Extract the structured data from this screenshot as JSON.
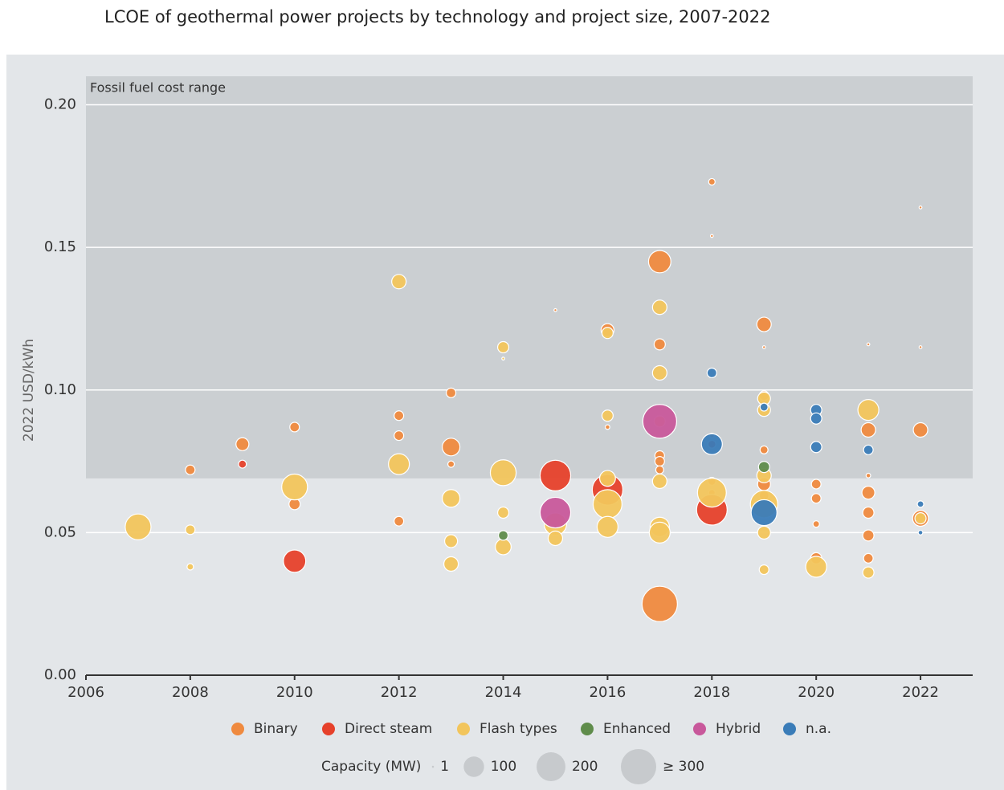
{
  "chart_data": {
    "type": "bubble",
    "title": "LCOE of geothermal power projects by technology and project size, 2007-2022",
    "y_label": "2022 USD/kWh",
    "band": {
      "label": "Fossil fuel cost range",
      "range": [
        0.069,
        0.21
      ]
    },
    "xlim": [
      2006,
      2023
    ],
    "xticks": [
      2006,
      2008,
      2010,
      2012,
      2014,
      2016,
      2018,
      2020,
      2022
    ],
    "ylim": [
      0,
      0.21
    ],
    "yticks": [
      {
        "value": 0,
        "label": "0.00"
      },
      0.05,
      {
        "value": 0.1,
        "label": "0.10"
      },
      0.15,
      {
        "value": 0.2,
        "label": "0.20"
      }
    ],
    "grid": true,
    "size_legend": {
      "title": "Capacity (MW)",
      "sizes": [
        1,
        100,
        200,
        {
          "value": 300,
          "label": "≥ 300"
        }
      ]
    },
    "series": [
      {
        "name": "Binary",
        "color": "#ef8a3f",
        "x": [
          2008,
          2009,
          2010,
          2010,
          2012,
          2012,
          2012,
          2013,
          2013,
          2013,
          2015,
          2016,
          2016,
          2017,
          2017,
          2017,
          2017,
          2017,
          2017,
          2018,
          2018,
          2018,
          2018,
          2018,
          2019,
          2019,
          2019,
          2019,
          2019,
          2019,
          2020,
          2020,
          2020,
          2020,
          2021,
          2021,
          2021,
          2021,
          2021,
          2021,
          2021,
          2022,
          2022,
          2022,
          2022
        ],
        "values": [
          0.072,
          0.081,
          0.06,
          0.087,
          0.091,
          0.084,
          0.054,
          0.099,
          0.08,
          0.074,
          0.128,
          0.121,
          0.087,
          0.145,
          0.116,
          0.077,
          0.075,
          0.072,
          0.025,
          0.173,
          0.154,
          0.084,
          0.068,
          0.064,
          0.123,
          0.115,
          0.098,
          0.079,
          0.067,
          0.063,
          0.067,
          0.062,
          0.053,
          0.041,
          0.116,
          0.086,
          0.07,
          0.064,
          0.057,
          0.049,
          0.041,
          0.164,
          0.115,
          0.086,
          0.055
        ],
        "sizes": [
          22,
          40,
          30,
          22,
          22,
          22,
          22,
          22,
          75,
          10,
          2,
          40,
          5,
          120,
          30,
          22,
          22,
          15,
          300,
          10,
          2,
          5,
          15,
          10,
          50,
          2,
          22,
          15,
          40,
          22,
          22,
          22,
          10,
          30,
          2,
          50,
          5,
          40,
          30,
          30,
          22,
          2,
          2,
          50,
          60
        ]
      },
      {
        "name": "Direct steam",
        "color": "#e6412b",
        "x": [
          2009,
          2010,
          2015,
          2016,
          2018,
          2018
        ],
        "values": [
          0.074,
          0.04,
          0.07,
          0.065,
          0.058,
          0.081
        ],
        "sizes": [
          15,
          120,
          225,
          225,
          225,
          15
        ]
      },
      {
        "name": "Flash types",
        "color": "#f2c55c",
        "x": [
          2007,
          2008,
          2008,
          2010,
          2012,
          2012,
          2013,
          2013,
          2013,
          2014,
          2014,
          2014,
          2014,
          2014,
          2015,
          2015,
          2016,
          2016,
          2016,
          2016,
          2016,
          2017,
          2017,
          2017,
          2017,
          2017,
          2017,
          2018,
          2019,
          2019,
          2019,
          2019,
          2019,
          2019,
          2020,
          2021,
          2021,
          2022
        ],
        "values": [
          0.052,
          0.051,
          0.038,
          0.066,
          0.138,
          0.074,
          0.062,
          0.047,
          0.039,
          0.115,
          0.111,
          0.071,
          0.057,
          0.045,
          0.053,
          0.048,
          0.12,
          0.091,
          0.069,
          0.06,
          0.052,
          0.129,
          0.106,
          0.089,
          0.068,
          0.052,
          0.05,
          0.064,
          0.097,
          0.093,
          0.07,
          0.06,
          0.05,
          0.037,
          0.038,
          0.093,
          0.036,
          0.055
        ],
        "sizes": [
          160,
          22,
          10,
          160,
          50,
          105,
          75,
          40,
          50,
          30,
          2,
          160,
          30,
          60,
          120,
          50,
          30,
          30,
          60,
          200,
          105,
          50,
          50,
          30,
          50,
          90,
          105,
          200,
          40,
          40,
          50,
          180,
          40,
          22,
          105,
          105,
          30,
          30
        ]
      },
      {
        "name": "Enhanced",
        "color": "#5f8c4b",
        "x": [
          2014,
          2019
        ],
        "values": [
          0.049,
          0.073
        ],
        "sizes": [
          22,
          30
        ]
      },
      {
        "name": "Hybrid",
        "color": "#c8589b",
        "x": [
          2015,
          2017
        ],
        "values": [
          0.057,
          0.089
        ],
        "sizes": [
          225,
          275
        ]
      },
      {
        "name": "n.a.",
        "color": "#3a7cb8",
        "x": [
          2018,
          2018,
          2019,
          2019,
          2020,
          2020,
          2020,
          2021,
          2022,
          2022
        ],
        "values": [
          0.106,
          0.081,
          0.057,
          0.094,
          0.093,
          0.09,
          0.08,
          0.079,
          0.06,
          0.05
        ],
        "sizes": [
          22,
          105,
          160,
          15,
          30,
          30,
          30,
          22,
          10,
          5
        ]
      }
    ]
  }
}
